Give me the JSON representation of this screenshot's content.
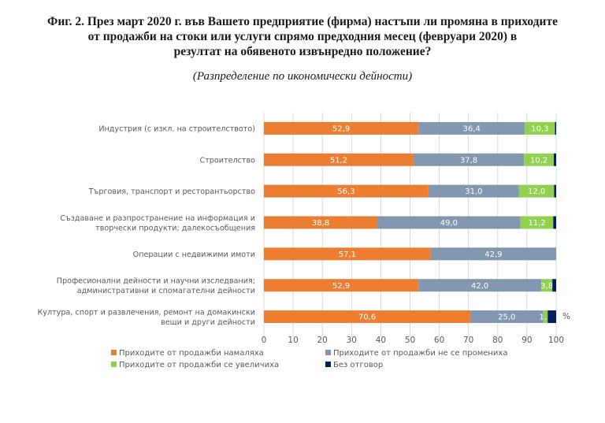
{
  "chart_data": {
    "type": "bar",
    "orientation": "horizontal",
    "stacked": true,
    "title": "Фиг. 2. През март 2020 г. във Вашето предприятие (фирма) настъпи ли промяна в приходите от продажби на стоки или услуги спрямо предходния месец (февруари 2020) в резултат на обявеното извънредно положение?",
    "title_lines": [
      "Фиг. 2. През март 2020 г. във Вашето предприятие (фирма) настъпи ли промяна в приходите",
      "от продажби на стоки или услуги спрямо предходния месец (февруари 2020) в",
      "резултат на обявеното извънредно положение?"
    ],
    "subtitle": "(Разпределение по икономически дейности)",
    "xlabel": "%",
    "ylabel": "",
    "xlim": [
      0,
      100
    ],
    "x_ticks": [
      0,
      10,
      20,
      30,
      40,
      50,
      60,
      70,
      80,
      90,
      100
    ],
    "grid": true,
    "legend_position": "bottom",
    "categories": [
      [
        "Индустрия (с изкл. на строителството)"
      ],
      [
        "Строителство"
      ],
      [
        "Търговия, транспорт и ресторантьорство"
      ],
      [
        "Създаване и разпространение на информация и",
        "творчески продукти; далекосъобщения"
      ],
      [
        "Операции с недвижими имоти"
      ],
      [
        "Професионални дейности и научни изследвания;",
        "административни и спомагателни дейности"
      ],
      [
        "Култура, спорт и развлечения, ремонт на домакински",
        "вещи и други дейности"
      ]
    ],
    "series": [
      {
        "name": "Приходите от продажби намаляха",
        "color": "#ED7D31",
        "values": [
          52.9,
          51.2,
          56.3,
          38.8,
          57.1,
          52.9,
          70.6
        ],
        "labels": [
          "52,9",
          "51,2",
          "56,3",
          "38,8",
          "57,1",
          "52,9",
          "70,6"
        ]
      },
      {
        "name": "Приходите от продажби не се промениха",
        "color": "#8497B0",
        "values": [
          36.4,
          37.8,
          31.0,
          49.0,
          42.9,
          42.0,
          25.0
        ],
        "labels": [
          "36,4",
          "37,8",
          "31,0",
          "49,0",
          "42,9",
          "42,0",
          "25,0"
        ]
      },
      {
        "name": "Приходите от продажби се увеличиха",
        "color": "#92D050",
        "values": [
          10.3,
          10.2,
          12.0,
          11.2,
          0,
          3.8,
          1.5
        ],
        "labels": [
          "10,3",
          "10,2",
          "12,0",
          "11,2",
          "",
          "3,8",
          "1,5"
        ]
      },
      {
        "name": "Без отговор",
        "color": "#002060",
        "values": [
          0.4,
          0.8,
          0.7,
          1.0,
          0,
          1.3,
          2.9
        ],
        "labels": [
          "",
          "",
          "",
          "",
          "",
          "",
          ""
        ]
      }
    ]
  }
}
